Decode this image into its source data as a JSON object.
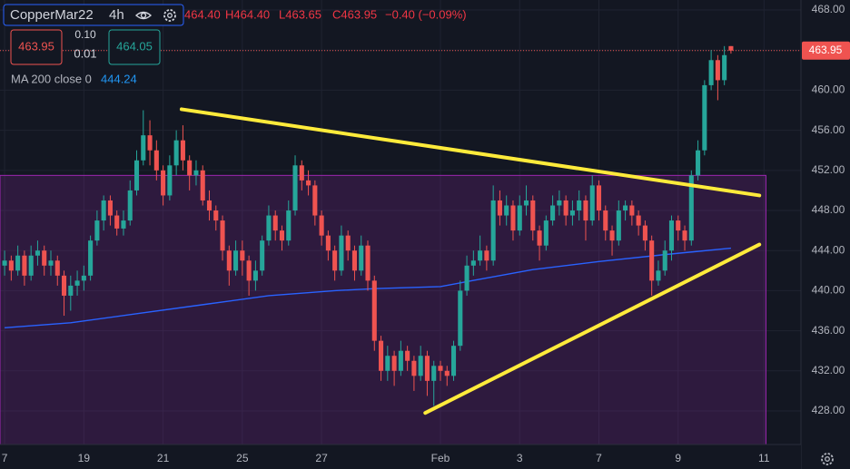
{
  "chart_data": {
    "type": "candlestick",
    "symbol": "CopperMar22",
    "interval": "4h",
    "ohlc_readout": [
      "464.40",
      "H464.40",
      "L463.65",
      "C463.95",
      "−0.40 (−0.09%)"
    ],
    "sell_price": "463.95",
    "spread_top": "0.10",
    "spread_bottom": "0.01",
    "buy_price": "464.05",
    "up_color": "#26a69a",
    "down_color": "#ef5350",
    "open": [
      442.5,
      443,
      442,
      443.5,
      441.5,
      443.5,
      444,
      442.5,
      443,
      441.5,
      439.5,
      440.5,
      441,
      441.5,
      445,
      447,
      449,
      447.5,
      446.2,
      447,
      450,
      453,
      455.5,
      454,
      452,
      449.5,
      452.5,
      455,
      453,
      451.5,
      452,
      449,
      448,
      447,
      444,
      442,
      444,
      443,
      441,
      442,
      445,
      447.5,
      446,
      445,
      448,
      452.5,
      451,
      450.5,
      447.5,
      445.5,
      444,
      442,
      445.5,
      444,
      442,
      444.5,
      441,
      435,
      432,
      433.5,
      432,
      434,
      433,
      431.5,
      433.5,
      431,
      432.5,
      432,
      431.5,
      434.5,
      440,
      442.5,
      443,
      444,
      443,
      449,
      447.5,
      448.5,
      446,
      448.5,
      449,
      446,
      444.5,
      447,
      448.5,
      449,
      447.5,
      448,
      449,
      447,
      450.5,
      448,
      446,
      445,
      448,
      448.5,
      447.5,
      446.5,
      445,
      441,
      442,
      444,
      447,
      446,
      445,
      451.5,
      454,
      460.5,
      463,
      461,
      464.4
    ],
    "high": [
      444,
      443.5,
      444.5,
      444,
      444.5,
      445,
      444.5,
      444,
      443.5,
      442,
      441.5,
      442,
      442.5,
      445.5,
      448,
      449.5,
      449.5,
      448,
      448,
      451,
      454,
      458,
      457,
      455,
      452.5,
      453.5,
      456,
      456.5,
      453.5,
      453,
      452.5,
      450,
      448.5,
      447.5,
      444.5,
      445,
      445,
      443.5,
      443,
      445.5,
      448.5,
      448,
      446.5,
      449,
      453.5,
      453,
      452,
      451,
      448,
      446,
      444.5,
      446.5,
      446,
      444.5,
      445.5,
      445,
      441.5,
      435.5,
      434.5,
      434,
      435,
      434.5,
      433.5,
      434.5,
      434,
      433,
      433,
      432.5,
      435,
      441,
      443.5,
      444,
      445.5,
      444.5,
      450.5,
      450,
      449.5,
      449,
      449.5,
      450.5,
      449.5,
      446.5,
      447.5,
      449.5,
      450,
      449.5,
      449,
      450,
      449.5,
      451.5,
      451,
      448.5,
      446.5,
      449,
      449,
      449,
      448,
      447,
      445.5,
      443,
      445,
      447.5,
      447.5,
      446.5,
      452,
      455,
      461,
      464,
      463.5,
      464.4,
      464.4
    ],
    "low": [
      441.5,
      441,
      441.5,
      440.5,
      441,
      442.5,
      441.5,
      441.5,
      440.5,
      437.5,
      438,
      439.5,
      440,
      441,
      444.5,
      446,
      446.5,
      445.5,
      445.5,
      446.5,
      449.5,
      452.5,
      452.5,
      451,
      448.5,
      449,
      451.5,
      452,
      450,
      450.5,
      448.5,
      447,
      446,
      443,
      440.5,
      441.5,
      441.5,
      439.5,
      440,
      441.5,
      444.5,
      445,
      444,
      444.5,
      447.5,
      450,
      449.5,
      446.5,
      444.5,
      443,
      441,
      441.5,
      443,
      441,
      441.5,
      440,
      434,
      431,
      431,
      430.5,
      431.5,
      432,
      430,
      431,
      429.5,
      428.5,
      431,
      430.5,
      431,
      434,
      439.5,
      441.5,
      442.5,
      442,
      442.5,
      446.5,
      446.5,
      445,
      445.5,
      447.5,
      445,
      443,
      444,
      446.5,
      447.5,
      446.5,
      446.5,
      447,
      445,
      446.5,
      447,
      445,
      443.5,
      444.5,
      447,
      446.5,
      445.5,
      444,
      439.5,
      440.5,
      441.5,
      443,
      445,
      444,
      444.5,
      451,
      453.5,
      460,
      459,
      460.5,
      463.65
    ],
    "close": [
      443,
      442,
      443.5,
      441.5,
      443.5,
      444,
      442.5,
      443,
      441.5,
      439.5,
      440.5,
      441,
      441.5,
      445,
      447,
      449,
      447.5,
      446.2,
      447,
      450,
      453,
      455.5,
      454,
      452,
      449.5,
      452.5,
      455,
      453,
      451.5,
      452,
      449,
      448,
      447,
      444,
      442,
      444,
      443,
      441,
      442,
      445,
      447.5,
      446,
      445,
      448,
      452.5,
      451,
      450.5,
      447.5,
      445.5,
      444,
      442,
      445.5,
      444,
      442,
      444.5,
      441,
      435,
      432,
      433.5,
      432,
      434,
      433,
      431.5,
      433.5,
      431,
      432.5,
      432,
      431.5,
      434.5,
      440,
      442.5,
      443,
      444,
      443,
      449,
      447.5,
      448.5,
      446,
      448.5,
      449,
      446,
      444.5,
      447,
      448.5,
      449,
      447.5,
      448,
      449,
      447,
      450.5,
      448,
      446,
      445,
      448,
      448.5,
      447.5,
      446.5,
      445,
      441,
      442,
      444,
      447,
      446,
      445,
      451.5,
      454,
      460.5,
      463,
      461,
      463.5,
      463.95
    ],
    "ma": {
      "label": "MA 200 close 0",
      "value_label": "444.24",
      "color": "#2962ff",
      "x": [
        0,
        10,
        20,
        30,
        40,
        50,
        56,
        66,
        70,
        80,
        90,
        100,
        110
      ],
      "values": [
        436.3,
        436.8,
        437.7,
        438.6,
        439.5,
        440,
        440.2,
        440.4,
        440.9,
        442.1,
        442.9,
        443.6,
        444.24
      ]
    },
    "zone": {
      "xlim": [
        -0.7,
        115.3
      ],
      "ylim": [
        424.65,
        451.5
      ],
      "color": "#9c27b0"
    },
    "trendlines": [
      {
        "x": [
          26.8,
          114.3
        ],
        "y": [
          458.1,
          449.5
        ]
      },
      {
        "x": [
          63.7,
          114.3
        ],
        "y": [
          427.8,
          444.6
        ]
      }
    ],
    "trendline_color": "#ffeb3b",
    "price_line": 463.95,
    "price_line_label": "463.95",
    "xlim": [
      -0.7,
      120.6
    ],
    "ylim": [
      424.65,
      469
    ],
    "xticks": [
      {
        "value": 0,
        "label": "7"
      },
      {
        "value": 12,
        "label": "19"
      },
      {
        "value": 24,
        "label": "21"
      },
      {
        "value": 36,
        "label": "25"
      },
      {
        "value": 48,
        "label": "27"
      },
      {
        "value": 66,
        "label": "Feb"
      },
      {
        "value": 78,
        "label": "3"
      },
      {
        "value": 90,
        "label": "7"
      },
      {
        "value": 102,
        "label": "9"
      },
      {
        "value": 115,
        "label": "11"
      }
    ],
    "yticks": [
      {
        "value": 468,
        "label": "468.00"
      },
      {
        "value": 464,
        "label": "464.00"
      },
      {
        "value": 460,
        "label": "460.00"
      },
      {
        "value": 456,
        "label": "456.00"
      },
      {
        "value": 452,
        "label": "452.00"
      },
      {
        "value": 448,
        "label": "448.00"
      },
      {
        "value": 444,
        "label": "444.00"
      },
      {
        "value": 440,
        "label": "440.00"
      },
      {
        "value": 436,
        "label": "436.00"
      },
      {
        "value": 432,
        "label": "432.00"
      },
      {
        "value": 428,
        "label": "428.00"
      }
    ],
    "grid": true
  }
}
